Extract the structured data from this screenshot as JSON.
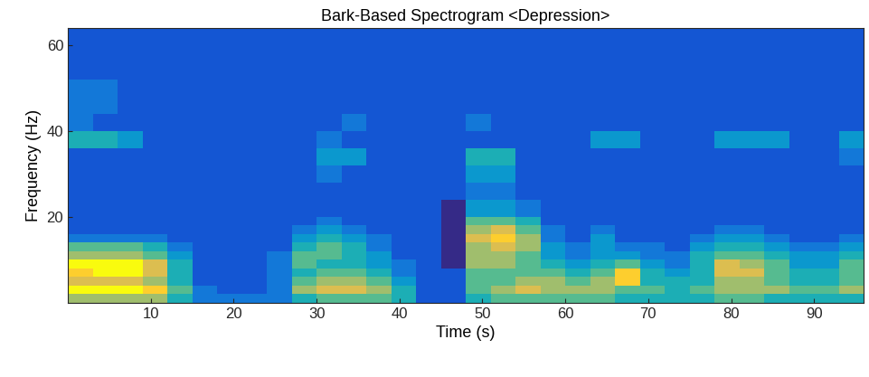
{
  "chart_data": {
    "type": "heatmap",
    "title": "Bark-Based Spectrogram <Depression>",
    "x_label": "Time (s)",
    "y_label": "Frequency (Hz)",
    "xlim": [
      0,
      96
    ],
    "xticks": [
      10,
      20,
      30,
      40,
      50,
      60,
      70,
      80,
      90
    ],
    "ylim": [
      0,
      64
    ],
    "yticks": [
      20,
      40,
      60
    ],
    "x_edges": [
      0,
      3,
      6,
      9,
      12,
      15,
      18,
      21,
      24,
      27,
      30,
      33,
      36,
      39,
      42,
      45,
      48,
      51,
      54,
      57,
      60,
      63,
      66,
      69,
      72,
      75,
      78,
      81,
      84,
      87,
      90,
      93,
      96
    ],
    "y_edges": [
      0,
      2,
      4,
      6,
      8,
      10,
      12,
      14,
      16,
      18,
      20,
      24,
      28,
      32,
      36,
      40,
      44,
      48,
      52,
      56,
      60,
      64
    ],
    "cells": [
      [
        6,
        6,
        6,
        6,
        4,
        2,
        2,
        2,
        2,
        4,
        5,
        5,
        5,
        4,
        1,
        1,
        4,
        5,
        5,
        5,
        5,
        5,
        4,
        4,
        4,
        4,
        5,
        5,
        4,
        4,
        4,
        4
      ],
      [
        9,
        9,
        9,
        8,
        5,
        2,
        1,
        1,
        2,
        6,
        7,
        7,
        6,
        4,
        1,
        1,
        5,
        6,
        7,
        6,
        6,
        6,
        5,
        5,
        4,
        5,
        6,
        6,
        6,
        5,
        5,
        6
      ],
      [
        7,
        7,
        7,
        6,
        4,
        1,
        1,
        1,
        2,
        5,
        6,
        6,
        5,
        3,
        1,
        1,
        5,
        5,
        6,
        6,
        5,
        6,
        8,
        4,
        4,
        4,
        6,
        6,
        5,
        4,
        4,
        5
      ],
      [
        8,
        9,
        9,
        7,
        4,
        1,
        1,
        1,
        2,
        4,
        5,
        5,
        4,
        2,
        1,
        1,
        5,
        5,
        5,
        5,
        4,
        5,
        8,
        4,
        3,
        4,
        7,
        7,
        5,
        4,
        4,
        5
      ],
      [
        9,
        9,
        9,
        7,
        4,
        1,
        1,
        1,
        2,
        5,
        4,
        4,
        3,
        2,
        1,
        0,
        6,
        6,
        5,
        4,
        3,
        4,
        5,
        3,
        2,
        4,
        7,
        6,
        5,
        3,
        3,
        5
      ],
      [
        6,
        6,
        6,
        5,
        3,
        1,
        1,
        1,
        2,
        5,
        5,
        4,
        3,
        1,
        1,
        0,
        6,
        6,
        5,
        3,
        2,
        3,
        3,
        2,
        2,
        4,
        5,
        5,
        4,
        3,
        3,
        4
      ],
      [
        5,
        5,
        5,
        4,
        2,
        1,
        1,
        1,
        1,
        4,
        5,
        4,
        2,
        1,
        1,
        0,
        6,
        7,
        6,
        3,
        2,
        3,
        2,
        2,
        1,
        3,
        4,
        4,
        3,
        2,
        2,
        3
      ],
      [
        2,
        2,
        2,
        2,
        1,
        1,
        1,
        1,
        1,
        3,
        4,
        3,
        2,
        1,
        1,
        0,
        7,
        8,
        6,
        2,
        1,
        3,
        1,
        1,
        1,
        2,
        3,
        3,
        2,
        1,
        1,
        2
      ],
      [
        1,
        1,
        1,
        1,
        1,
        1,
        1,
        1,
        1,
        2,
        3,
        2,
        1,
        1,
        1,
        0,
        6,
        7,
        5,
        2,
        1,
        2,
        1,
        1,
        1,
        1,
        2,
        2,
        1,
        1,
        1,
        1
      ],
      [
        1,
        1,
        1,
        1,
        1,
        1,
        1,
        1,
        1,
        1,
        2,
        1,
        1,
        1,
        1,
        0,
        5,
        5,
        4,
        1,
        1,
        1,
        1,
        1,
        1,
        1,
        1,
        1,
        1,
        1,
        1,
        1
      ],
      [
        1,
        1,
        1,
        1,
        1,
        1,
        1,
        1,
        1,
        1,
        1,
        1,
        1,
        1,
        1,
        0,
        3,
        3,
        2,
        1,
        1,
        1,
        1,
        1,
        1,
        1,
        1,
        1,
        1,
        1,
        1,
        1
      ],
      [
        1,
        1,
        1,
        1,
        1,
        1,
        1,
        1,
        1,
        1,
        1,
        1,
        1,
        1,
        1,
        1,
        2,
        2,
        1,
        1,
        1,
        1,
        1,
        1,
        1,
        1,
        1,
        1,
        1,
        1,
        1,
        1
      ],
      [
        1,
        1,
        1,
        1,
        1,
        1,
        1,
        1,
        1,
        1,
        2,
        1,
        1,
        1,
        1,
        1,
        3,
        3,
        1,
        1,
        1,
        1,
        1,
        1,
        1,
        1,
        1,
        1,
        1,
        1,
        1,
        1
      ],
      [
        1,
        1,
        1,
        1,
        1,
        1,
        1,
        1,
        1,
        1,
        3,
        3,
        1,
        1,
        1,
        1,
        4,
        4,
        1,
        1,
        1,
        1,
        1,
        1,
        1,
        1,
        1,
        1,
        1,
        1,
        1,
        2
      ],
      [
        4,
        4,
        3,
        1,
        1,
        1,
        1,
        1,
        1,
        1,
        2,
        1,
        1,
        1,
        1,
        1,
        1,
        1,
        1,
        1,
        1,
        3,
        3,
        1,
        1,
        1,
        3,
        3,
        3,
        1,
        1,
        3
      ],
      [
        2,
        1,
        1,
        1,
        1,
        1,
        1,
        1,
        1,
        1,
        1,
        2,
        1,
        1,
        1,
        1,
        2,
        1,
        1,
        1,
        1,
        1,
        1,
        1,
        1,
        1,
        1,
        1,
        1,
        1,
        1,
        1
      ],
      [
        2,
        2,
        1,
        1,
        1,
        1,
        1,
        1,
        1,
        1,
        1,
        1,
        1,
        1,
        1,
        1,
        1,
        1,
        1,
        1,
        1,
        1,
        1,
        1,
        1,
        1,
        1,
        1,
        1,
        1,
        1,
        1
      ],
      [
        2,
        2,
        1,
        1,
        1,
        1,
        1,
        1,
        1,
        1,
        1,
        1,
        1,
        1,
        1,
        1,
        1,
        1,
        1,
        1,
        1,
        1,
        1,
        1,
        1,
        1,
        1,
        1,
        1,
        1,
        1,
        1
      ],
      [
        1,
        1,
        1,
        1,
        1,
        1,
        1,
        1,
        1,
        1,
        1,
        1,
        1,
        1,
        1,
        1,
        1,
        1,
        1,
        1,
        1,
        1,
        1,
        1,
        1,
        1,
        1,
        1,
        1,
        1,
        1,
        1
      ],
      [
        1,
        1,
        1,
        1,
        1,
        1,
        1,
        1,
        1,
        1,
        1,
        1,
        1,
        1,
        1,
        1,
        1,
        1,
        1,
        1,
        1,
        1,
        1,
        1,
        1,
        1,
        1,
        1,
        1,
        1,
        1,
        1
      ],
      [
        1,
        1,
        1,
        1,
        1,
        1,
        1,
        1,
        1,
        1,
        1,
        1,
        1,
        1,
        1,
        1,
        1,
        1,
        1,
        1,
        1,
        1,
        1,
        1,
        1,
        1,
        1,
        1,
        1,
        1,
        1,
        1
      ]
    ]
  }
}
